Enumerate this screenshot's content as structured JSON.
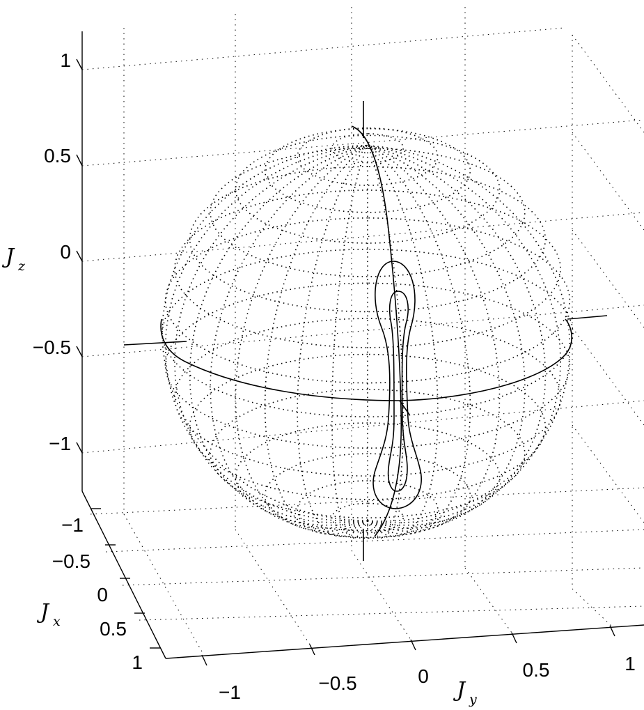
{
  "chart_data": {
    "type": "scatter",
    "title": "",
    "xlabel": "J_x",
    "ylabel": "J_y",
    "zlabel": "J_z",
    "xlim": [
      -1.2,
      1.2
    ],
    "ylim": [
      -1.2,
      1.2
    ],
    "zlim": [
      -1.2,
      1.2
    ],
    "grid": true,
    "projection": "3d",
    "tick_labels": {
      "x": [
        "−1",
        "−0.5",
        "0",
        "0.5",
        "1"
      ],
      "y": [
        "−1",
        "−0.5",
        "0",
        "0.5",
        "1"
      ],
      "z": [
        "1",
        "0.5",
        "0",
        "−0.5",
        "−1"
      ]
    },
    "axis_labels": {
      "x": {
        "base": "J",
        "sub": "x"
      },
      "y": {
        "base": "J",
        "sub": "y"
      },
      "z": {
        "base": "J",
        "sub": "z"
      }
    },
    "series": [
      {
        "description": "unit sphere drawn as dotted latitude/longitude mesh",
        "radius": 1
      },
      {
        "description": "great circle in the Jx–Jy plane (equator, Jz = 0)"
      },
      {
        "description": "great circle in the Jy–Jz plane (meridian, Jx = 0)"
      },
      {
        "description": "outer closed trajectory near +Jx pole, elongated along Jz",
        "jz_range": [
          -0.62,
          0.62
        ]
      },
      {
        "description": "inner closed trajectory near +Jx pole, elongated along Jz",
        "jz_range": [
          -0.55,
          0.55
        ]
      }
    ]
  }
}
